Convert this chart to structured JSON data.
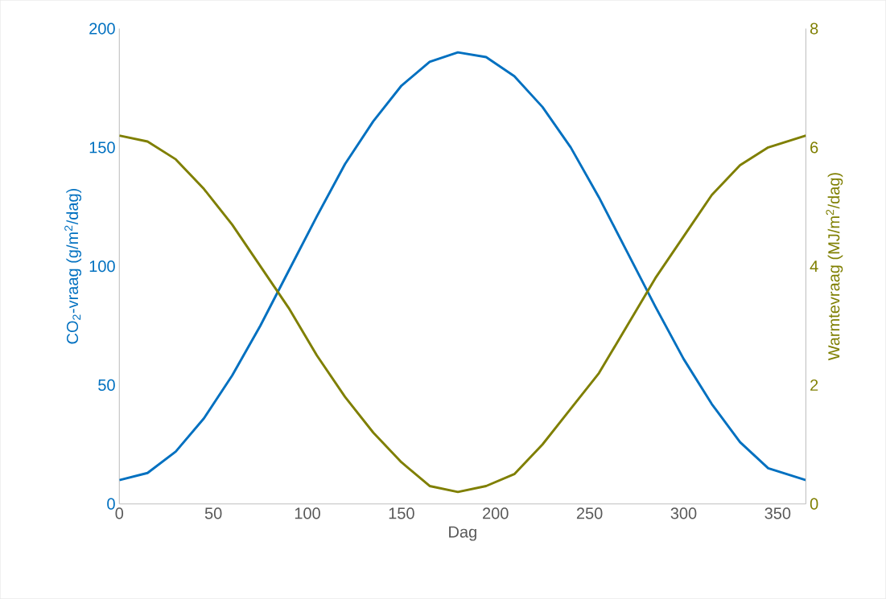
{
  "chart_data": {
    "type": "line",
    "xlabel": "Dag",
    "ylabel": "CO$_{2}$-vraag (g/m$^{2}$/dag)",
    "y2label": "Warmtevraag (MJ/m$^{2}$/dag)",
    "xlim": [
      0,
      365
    ],
    "xticks": [
      0,
      50,
      100,
      150,
      200,
      250,
      300,
      350
    ],
    "ylim": [
      0,
      200
    ],
    "yticks": [
      0,
      50,
      100,
      150,
      200
    ],
    "y2lim": [
      0,
      8
    ],
    "y2ticks": [
      0,
      2,
      4,
      6,
      8
    ],
    "marker": "none",
    "line_style": "solid",
    "series": [
      {
        "color": "#0070c0",
        "x": [
          0,
          15,
          30,
          45,
          60,
          75,
          90,
          105,
          120,
          135,
          150,
          165,
          180,
          195,
          210,
          225,
          240,
          255,
          270,
          285,
          300,
          315,
          330,
          345,
          365
        ],
        "values": [
          10,
          13,
          22,
          36,
          54,
          75,
          98,
          121,
          143,
          161,
          176,
          186,
          190,
          188,
          180,
          167,
          150,
          129,
          106,
          83,
          61,
          42,
          26,
          15,
          10
        ]
      },
      {
        "color": "#7f7f00",
        "axis": "y2",
        "x": [
          0,
          15,
          30,
          45,
          60,
          75,
          90,
          105,
          120,
          135,
          150,
          165,
          180,
          195,
          210,
          225,
          240,
          255,
          270,
          285,
          300,
          315,
          330,
          345,
          365
        ],
        "values": [
          6.2,
          6.1,
          5.8,
          5.3,
          4.7,
          4.0,
          3.3,
          2.5,
          1.8,
          1.2,
          0.7,
          0.3,
          0.2,
          0.3,
          0.5,
          1.0,
          1.6,
          2.2,
          3.0,
          3.8,
          4.5,
          5.2,
          5.7,
          6.0,
          6.2
        ]
      }
    ]
  }
}
